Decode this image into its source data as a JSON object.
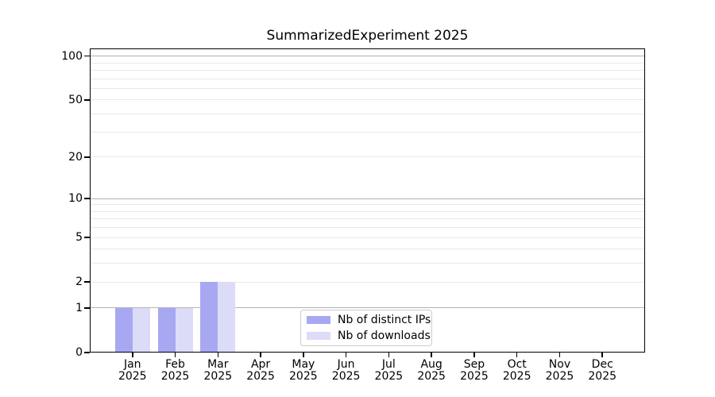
{
  "title": "SummarizedExperiment 2025",
  "chart_data": {
    "type": "bar",
    "title": "SummarizedExperiment 2025",
    "categories": [
      "Jan",
      "Feb",
      "Mar",
      "Apr",
      "May",
      "Jun",
      "Jul",
      "Aug",
      "Sep",
      "Oct",
      "Nov",
      "Dec"
    ],
    "year_label": "2025",
    "series": [
      {
        "name": "Nb of distinct IPs",
        "color": "#a8a8f2",
        "values": [
          1,
          1,
          2,
          0,
          0,
          0,
          0,
          0,
          0,
          0,
          0,
          0
        ]
      },
      {
        "name": "Nb of downloads",
        "color": "#dcdcf9",
        "values": [
          1,
          1,
          2,
          0,
          0,
          0,
          0,
          0,
          0,
          0,
          0,
          0
        ]
      }
    ],
    "xlabel": "",
    "ylabel": "",
    "y_axis": {
      "scale": "log1p",
      "tick_labels": [
        "0",
        "1",
        "2",
        "5",
        "10",
        "20",
        "50",
        "100"
      ],
      "tick_values": [
        0,
        1,
        2,
        5,
        10,
        20,
        50,
        100
      ],
      "major_gridline_values": [
        1,
        10,
        100
      ],
      "minor_gridline_values": [
        2,
        3,
        4,
        5,
        6,
        7,
        8,
        9,
        20,
        30,
        40,
        50,
        60,
        70,
        80,
        90
      ],
      "ylim_top_value": 113
    },
    "legend": {
      "position": "lower center-right inside plot",
      "entries": [
        "Nb of distinct IPs",
        "Nb of downloads"
      ]
    },
    "grid": "on",
    "colors": {
      "bar_distinct_ips": "#a8a8f2",
      "bar_downloads": "#dcdcf9",
      "major_grid": "#b3b3b3",
      "minor_grid": "#e9e9e9",
      "spine": "#000000",
      "background": "#ffffff",
      "legend_border": "#cccccc"
    }
  }
}
